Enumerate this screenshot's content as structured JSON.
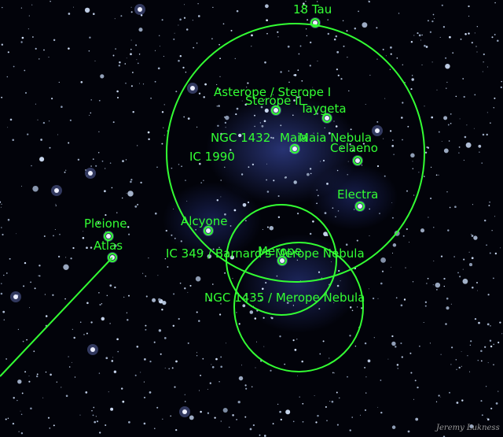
{
  "colors": {
    "overlay": "#33ff33",
    "sky": "#02030a"
  },
  "labels": {
    "tau18": "18 Tau",
    "asterope": "Asterope / Sterope I",
    "sterope2": "Sterope II",
    "taygeta": "Taygeta",
    "ngc1432": "NGC 1432",
    "maia": "Maia",
    "maia_nebula": "Maia Nebula",
    "celaeno": "Celaeno",
    "ic1990": "IC 1990",
    "electra": "Electra",
    "pleione": "Pleione",
    "alcyone": "Alcyone",
    "atlas": "Atlas",
    "ic349": "IC 349 / Barnard's Merope Nebula",
    "merope": "Merope",
    "ngc1435": "NGC 1435 / Merope Nebula"
  },
  "credit": "Jeremy Lukness"
}
